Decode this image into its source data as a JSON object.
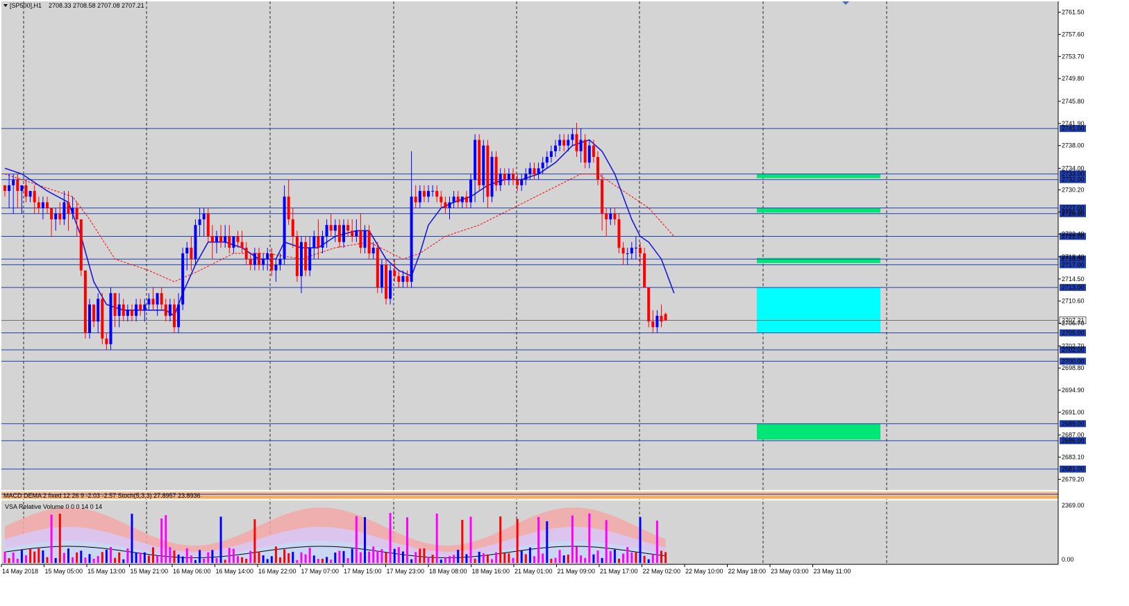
{
  "header": {
    "symbol": "[SP500],H1",
    "ohlc": "2708.33 2708.58 2707.08 2707.21",
    "indicator_macd": "MACD DEMA 2 fixed 12 26 9 -2.03 -2.57 Stoch(5,3,3) 27.8957 23.8936",
    "indicator_vsa": "VSA Relative Volume 0 0 0 14 0 14"
  },
  "colors": {
    "background": "#d4d4d4",
    "candle_up": "#0000ff",
    "candle_down": "#ff0000",
    "level_line": "#1f3fae",
    "ma_fast": "#1a1ad6",
    "ma_slow": "#ff0000",
    "zone_green": "#00e676",
    "zone_cyan": "#00ffff",
    "price_tag": "#1f3fae"
  },
  "chart_data": {
    "type": "candlestick",
    "title": "",
    "ylim": [
      2677.3,
      2763.4
    ],
    "y_ticks": [
      2761.5,
      2757.6,
      2753.7,
      2749.8,
      2745.8,
      2741.9,
      2738.0,
      2734.0,
      2730.2,
      2726.3,
      2722.4,
      2718.4,
      2714.5,
      2710.6,
      2706.7,
      2702.7,
      2698.8,
      2694.9,
      2691.0,
      2687.0,
      2683.1,
      2679.2
    ],
    "x_labels": [
      "14 May 2018",
      "15 May 05:00",
      "15 May 13:00",
      "15 May 21:00",
      "16 May 06:00",
      "16 May 14:00",
      "16 May 22:00",
      "17 May 07:00",
      "17 May 15:00",
      "17 May 23:00",
      "18 May 08:00",
      "18 May 16:00",
      "21 May 01:00",
      "21 May 09:00",
      "21 May 17:00",
      "22 May 02:00",
      "22 May 10:00",
      "22 May 18:00",
      "23 May 03:00",
      "23 May 11:00"
    ],
    "horizontal_levels": [
      2741.0,
      2733.0,
      2732.0,
      2727.0,
      2726.0,
      2722.0,
      2718.0,
      2717.0,
      2713.0,
      2705.0,
      2702.0,
      2700.0,
      2689.0,
      2686.0,
      2681.0
    ],
    "current_price": 2707.21,
    "zones": [
      {
        "color": "green",
        "from": 2732.3,
        "to": 2733.0
      },
      {
        "color": "green",
        "from": 2726.2,
        "to": 2727.0
      },
      {
        "color": "green",
        "from": 2717.3,
        "to": 2718.2
      },
      {
        "color": "cyan",
        "from": 2705.0,
        "to": 2713.0
      },
      {
        "color": "green",
        "from": 2686.2,
        "to": 2689.0
      }
    ],
    "candles": [
      [
        2731,
        2731,
        2729,
        2730
      ],
      [
        2730,
        2733,
        2727,
        2731
      ],
      [
        2731,
        2733,
        2726,
        2732
      ],
      [
        2732,
        2733,
        2727,
        2730
      ],
      [
        2730,
        2731,
        2726,
        2731
      ],
      [
        2731,
        2732,
        2728,
        2729
      ],
      [
        2729,
        2730,
        2728,
        2730
      ],
      [
        2730,
        2731,
        2726,
        2728
      ],
      [
        2728,
        2729,
        2726,
        2727
      ],
      [
        2727,
        2729,
        2725,
        2728
      ],
      [
        2728,
        2729,
        2726,
        2727
      ],
      [
        2727,
        2727,
        2722,
        2725
      ],
      [
        2725,
        2727,
        2723,
        2726
      ],
      [
        2726,
        2728,
        2724,
        2725
      ],
      [
        2725,
        2730,
        2724,
        2728
      ],
      [
        2728,
        2730,
        2723,
        2726
      ],
      [
        2726,
        2729,
        2725,
        2727
      ],
      [
        2727,
        2728,
        2722,
        2725
      ],
      [
        2725,
        2725,
        2715,
        2716
      ],
      [
        2716,
        2716,
        2704,
        2705
      ],
      [
        2705,
        2711,
        2704,
        2710
      ],
      [
        2710,
        2710,
        2706,
        2707
      ],
      [
        2707,
        2712,
        2705,
        2711
      ],
      [
        2711,
        2712,
        2703,
        2704
      ],
      [
        2704,
        2705,
        2702,
        2703
      ],
      [
        2703,
        2713,
        2702,
        2712
      ],
      [
        2712,
        2712,
        2706,
        2708
      ],
      [
        2708,
        2712,
        2706,
        2710
      ],
      [
        2710,
        2711,
        2707,
        2708
      ],
      [
        2708,
        2710,
        2707,
        2709
      ],
      [
        2709,
        2710,
        2707,
        2708
      ],
      [
        2708,
        2711,
        2707,
        2710
      ],
      [
        2710,
        2711,
        2708,
        2709
      ],
      [
        2709,
        2711,
        2707,
        2710
      ],
      [
        2710,
        2712,
        2709,
        2711
      ],
      [
        2711,
        2713,
        2709,
        2710
      ],
      [
        2710,
        2712,
        2708,
        2712
      ],
      [
        2712,
        2713,
        2709,
        2710
      ],
      [
        2710,
        2711,
        2707,
        2708
      ],
      [
        2708,
        2711,
        2707,
        2710
      ],
      [
        2710,
        2711,
        2705,
        2706
      ],
      [
        2706,
        2712,
        2705,
        2710
      ],
      [
        2710,
        2720,
        2709,
        2719
      ],
      [
        2719,
        2721,
        2716,
        2720
      ],
      [
        2720,
        2722,
        2716,
        2718
      ],
      [
        2718,
        2725,
        2717,
        2724
      ],
      [
        2724,
        2727,
        2722,
        2725
      ],
      [
        2725,
        2727,
        2722,
        2726
      ],
      [
        2726,
        2727,
        2721,
        2722
      ],
      [
        2722,
        2724,
        2718,
        2721
      ],
      [
        2721,
        2723,
        2719,
        2722
      ],
      [
        2722,
        2724,
        2720,
        2721
      ],
      [
        2721,
        2724,
        2720,
        2722
      ],
      [
        2722,
        2724,
        2719,
        2720
      ],
      [
        2720,
        2722,
        2719,
        2722
      ],
      [
        2722,
        2723,
        2720,
        2721
      ],
      [
        2721,
        2723,
        2719,
        2720
      ],
      [
        2720,
        2721,
        2717,
        2718
      ],
      [
        2718,
        2719,
        2716,
        2717
      ],
      [
        2717,
        2720,
        2716,
        2719
      ],
      [
        2719,
        2720,
        2716,
        2717
      ],
      [
        2717,
        2719,
        2716,
        2718
      ],
      [
        2718,
        2720,
        2716,
        2719
      ],
      [
        2719,
        2720,
        2715,
        2716
      ],
      [
        2716,
        2718,
        2714,
        2717
      ],
      [
        2717,
        2719,
        2716,
        2718
      ],
      [
        2718,
        2731,
        2717,
        2729
      ],
      [
        2729,
        2732,
        2724,
        2725
      ],
      [
        2725,
        2727,
        2720,
        2722
      ],
      [
        2722,
        2723,
        2714,
        2715
      ],
      [
        2715,
        2722,
        2712,
        2721
      ],
      [
        2721,
        2722,
        2715,
        2716
      ],
      [
        2716,
        2722,
        2715,
        2720
      ],
      [
        2720,
        2723,
        2718,
        2722
      ],
      [
        2722,
        2725,
        2718,
        2720
      ],
      [
        2720,
        2723,
        2719,
        2722
      ],
      [
        2722,
        2725,
        2720,
        2724
      ],
      [
        2724,
        2726,
        2722,
        2723
      ],
      [
        2723,
        2725,
        2721,
        2724
      ],
      [
        2724,
        2725,
        2720,
        2721
      ],
      [
        2721,
        2725,
        2720,
        2724
      ],
      [
        2724,
        2725,
        2722,
        2723
      ],
      [
        2723,
        2725,
        2721,
        2722
      ],
      [
        2722,
        2725,
        2721,
        2723
      ],
      [
        2723,
        2726,
        2719,
        2720
      ],
      [
        2720,
        2724,
        2719,
        2723
      ],
      [
        2723,
        2724,
        2718,
        2719
      ],
      [
        2719,
        2721,
        2718,
        2720
      ],
      [
        2720,
        2721,
        2712,
        2713
      ],
      [
        2713,
        2718,
        2712,
        2717
      ],
      [
        2717,
        2718,
        2710,
        2711
      ],
      [
        2711,
        2717,
        2710,
        2716
      ],
      [
        2716,
        2718,
        2714,
        2715
      ],
      [
        2715,
        2716,
        2713,
        2714
      ],
      [
        2714,
        2716,
        2713,
        2715
      ],
      [
        2715,
        2716,
        2713,
        2714
      ],
      [
        2714,
        2737,
        2713,
        2729
      ],
      [
        2729,
        2731,
        2727,
        2728
      ],
      [
        2728,
        2731,
        2727,
        2730
      ],
      [
        2730,
        2731,
        2728,
        2729
      ],
      [
        2729,
        2731,
        2728,
        2730
      ],
      [
        2730,
        2731,
        2729,
        2730
      ],
      [
        2730,
        2731,
        2728,
        2729
      ],
      [
        2729,
        2730,
        2727,
        2728
      ],
      [
        2728,
        2729,
        2726,
        2727
      ],
      [
        2727,
        2729,
        2725,
        2728
      ],
      [
        2728,
        2730,
        2727,
        2729
      ],
      [
        2729,
        2730,
        2727,
        2728
      ],
      [
        2728,
        2729,
        2727,
        2729
      ],
      [
        2729,
        2730,
        2727,
        2728
      ],
      [
        2728,
        2733,
        2727,
        2732
      ],
      [
        2732,
        2740,
        2728,
        2739
      ],
      [
        2739,
        2740,
        2730,
        2731
      ],
      [
        2731,
        2739,
        2728,
        2738
      ],
      [
        2738,
        2739,
        2727,
        2729
      ],
      [
        2729,
        2737,
        2728,
        2736
      ],
      [
        2736,
        2737,
        2730,
        2731
      ],
      [
        2731,
        2734,
        2730,
        2733
      ],
      [
        2733,
        2734,
        2731,
        2732
      ],
      [
        2732,
        2734,
        2731,
        2733
      ],
      [
        2733,
        2734,
        2731,
        2732
      ],
      [
        2732,
        2733,
        2730,
        2731
      ],
      [
        2731,
        2733,
        2730,
        2732
      ],
      [
        2732,
        2734,
        2731,
        2733
      ],
      [
        2733,
        2735,
        2732,
        2734
      ],
      [
        2734,
        2735,
        2732,
        2733
      ],
      [
        2733,
        2735,
        2732,
        2734
      ],
      [
        2734,
        2736,
        2733,
        2735
      ],
      [
        2735,
        2737,
        2734,
        2736
      ],
      [
        2736,
        2738,
        2735,
        2737
      ],
      [
        2737,
        2739,
        2736,
        2738
      ],
      [
        2738,
        2740,
        2737,
        2739
      ],
      [
        2739,
        2740,
        2737,
        2738
      ],
      [
        2738,
        2740,
        2737,
        2739
      ],
      [
        2739,
        2741,
        2738,
        2740
      ],
      [
        2740,
        2742,
        2736,
        2737
      ],
      [
        2737,
        2741,
        2735,
        2739
      ],
      [
        2739,
        2740,
        2734,
        2735
      ],
      [
        2735,
        2739,
        2734,
        2738
      ],
      [
        2738,
        2739,
        2735,
        2736
      ],
      [
        2736,
        2737,
        2731,
        2732
      ],
      [
        2732,
        2733,
        2723,
        2726
      ],
      [
        2726,
        2727,
        2722,
        2725
      ],
      [
        2725,
        2727,
        2724,
        2726
      ],
      [
        2726,
        2727,
        2724,
        2725
      ],
      [
        2725,
        2726,
        2719,
        2720
      ],
      [
        2720,
        2721,
        2717,
        2719
      ],
      [
        2719,
        2720,
        2717,
        2719
      ],
      [
        2719,
        2721,
        2718,
        2720
      ],
      [
        2720,
        2722,
        2718,
        2720
      ],
      [
        2720,
        2721,
        2717,
        2719
      ],
      [
        2719,
        2720,
        2713,
        2713
      ],
      [
        2713,
        2713,
        2706,
        2707
      ],
      [
        2707,
        2709,
        2705,
        2706
      ],
      [
        2706,
        2709,
        2705,
        2708
      ],
      [
        2708,
        2710,
        2706,
        2707
      ],
      [
        2708.33,
        2708.58,
        2707.08,
        2707.21
      ]
    ],
    "ma_fast": [
      [
        0,
        2734
      ],
      [
        4,
        2733
      ],
      [
        10,
        2730
      ],
      [
        15,
        2728
      ],
      [
        18,
        2722
      ],
      [
        21,
        2714
      ],
      [
        24,
        2710
      ],
      [
        28,
        2709
      ],
      [
        33,
        2709
      ],
      [
        38,
        2709
      ],
      [
        40,
        2708
      ],
      [
        42,
        2712
      ],
      [
        45,
        2717
      ],
      [
        48,
        2721
      ],
      [
        52,
        2721
      ],
      [
        56,
        2720
      ],
      [
        60,
        2718
      ],
      [
        64,
        2718
      ],
      [
        66,
        2721
      ],
      [
        70,
        2720
      ],
      [
        74,
        2720
      ],
      [
        78,
        2722
      ],
      [
        83,
        2723
      ],
      [
        86,
        2723
      ],
      [
        90,
        2718
      ],
      [
        93,
        2716
      ],
      [
        96,
        2715
      ],
      [
        98,
        2719
      ],
      [
        100,
        2724
      ],
      [
        103,
        2727
      ],
      [
        106,
        2728
      ],
      [
        110,
        2729
      ],
      [
        114,
        2731
      ],
      [
        118,
        2732
      ],
      [
        122,
        2732
      ],
      [
        126,
        2733
      ],
      [
        130,
        2735
      ],
      [
        134,
        2738
      ],
      [
        138,
        2739
      ],
      [
        141,
        2737
      ],
      [
        144,
        2733
      ],
      [
        146,
        2729
      ],
      [
        148,
        2725
      ],
      [
        150,
        2722
      ],
      [
        152,
        2721
      ],
      [
        155,
        2718
      ],
      [
        158,
        2712
      ]
    ],
    "ma_slow": [
      [
        0,
        2733
      ],
      [
        8,
        2731
      ],
      [
        16,
        2729
      ],
      [
        20,
        2725
      ],
      [
        26,
        2718
      ],
      [
        34,
        2716
      ],
      [
        40,
        2714
      ],
      [
        46,
        2716
      ],
      [
        54,
        2719
      ],
      [
        62,
        2719
      ],
      [
        70,
        2718
      ],
      [
        78,
        2720
      ],
      [
        86,
        2721
      ],
      [
        94,
        2718
      ],
      [
        98,
        2719
      ],
      [
        104,
        2722
      ],
      [
        112,
        2724
      ],
      [
        120,
        2727
      ],
      [
        128,
        2730
      ],
      [
        136,
        2733
      ],
      [
        140,
        2733
      ],
      [
        146,
        2730
      ],
      [
        152,
        2727
      ],
      [
        158,
        2722
      ]
    ],
    "vsa_ylim": [
      0,
      2369
    ],
    "vsa_ticks": [
      2369,
      0
    ]
  }
}
